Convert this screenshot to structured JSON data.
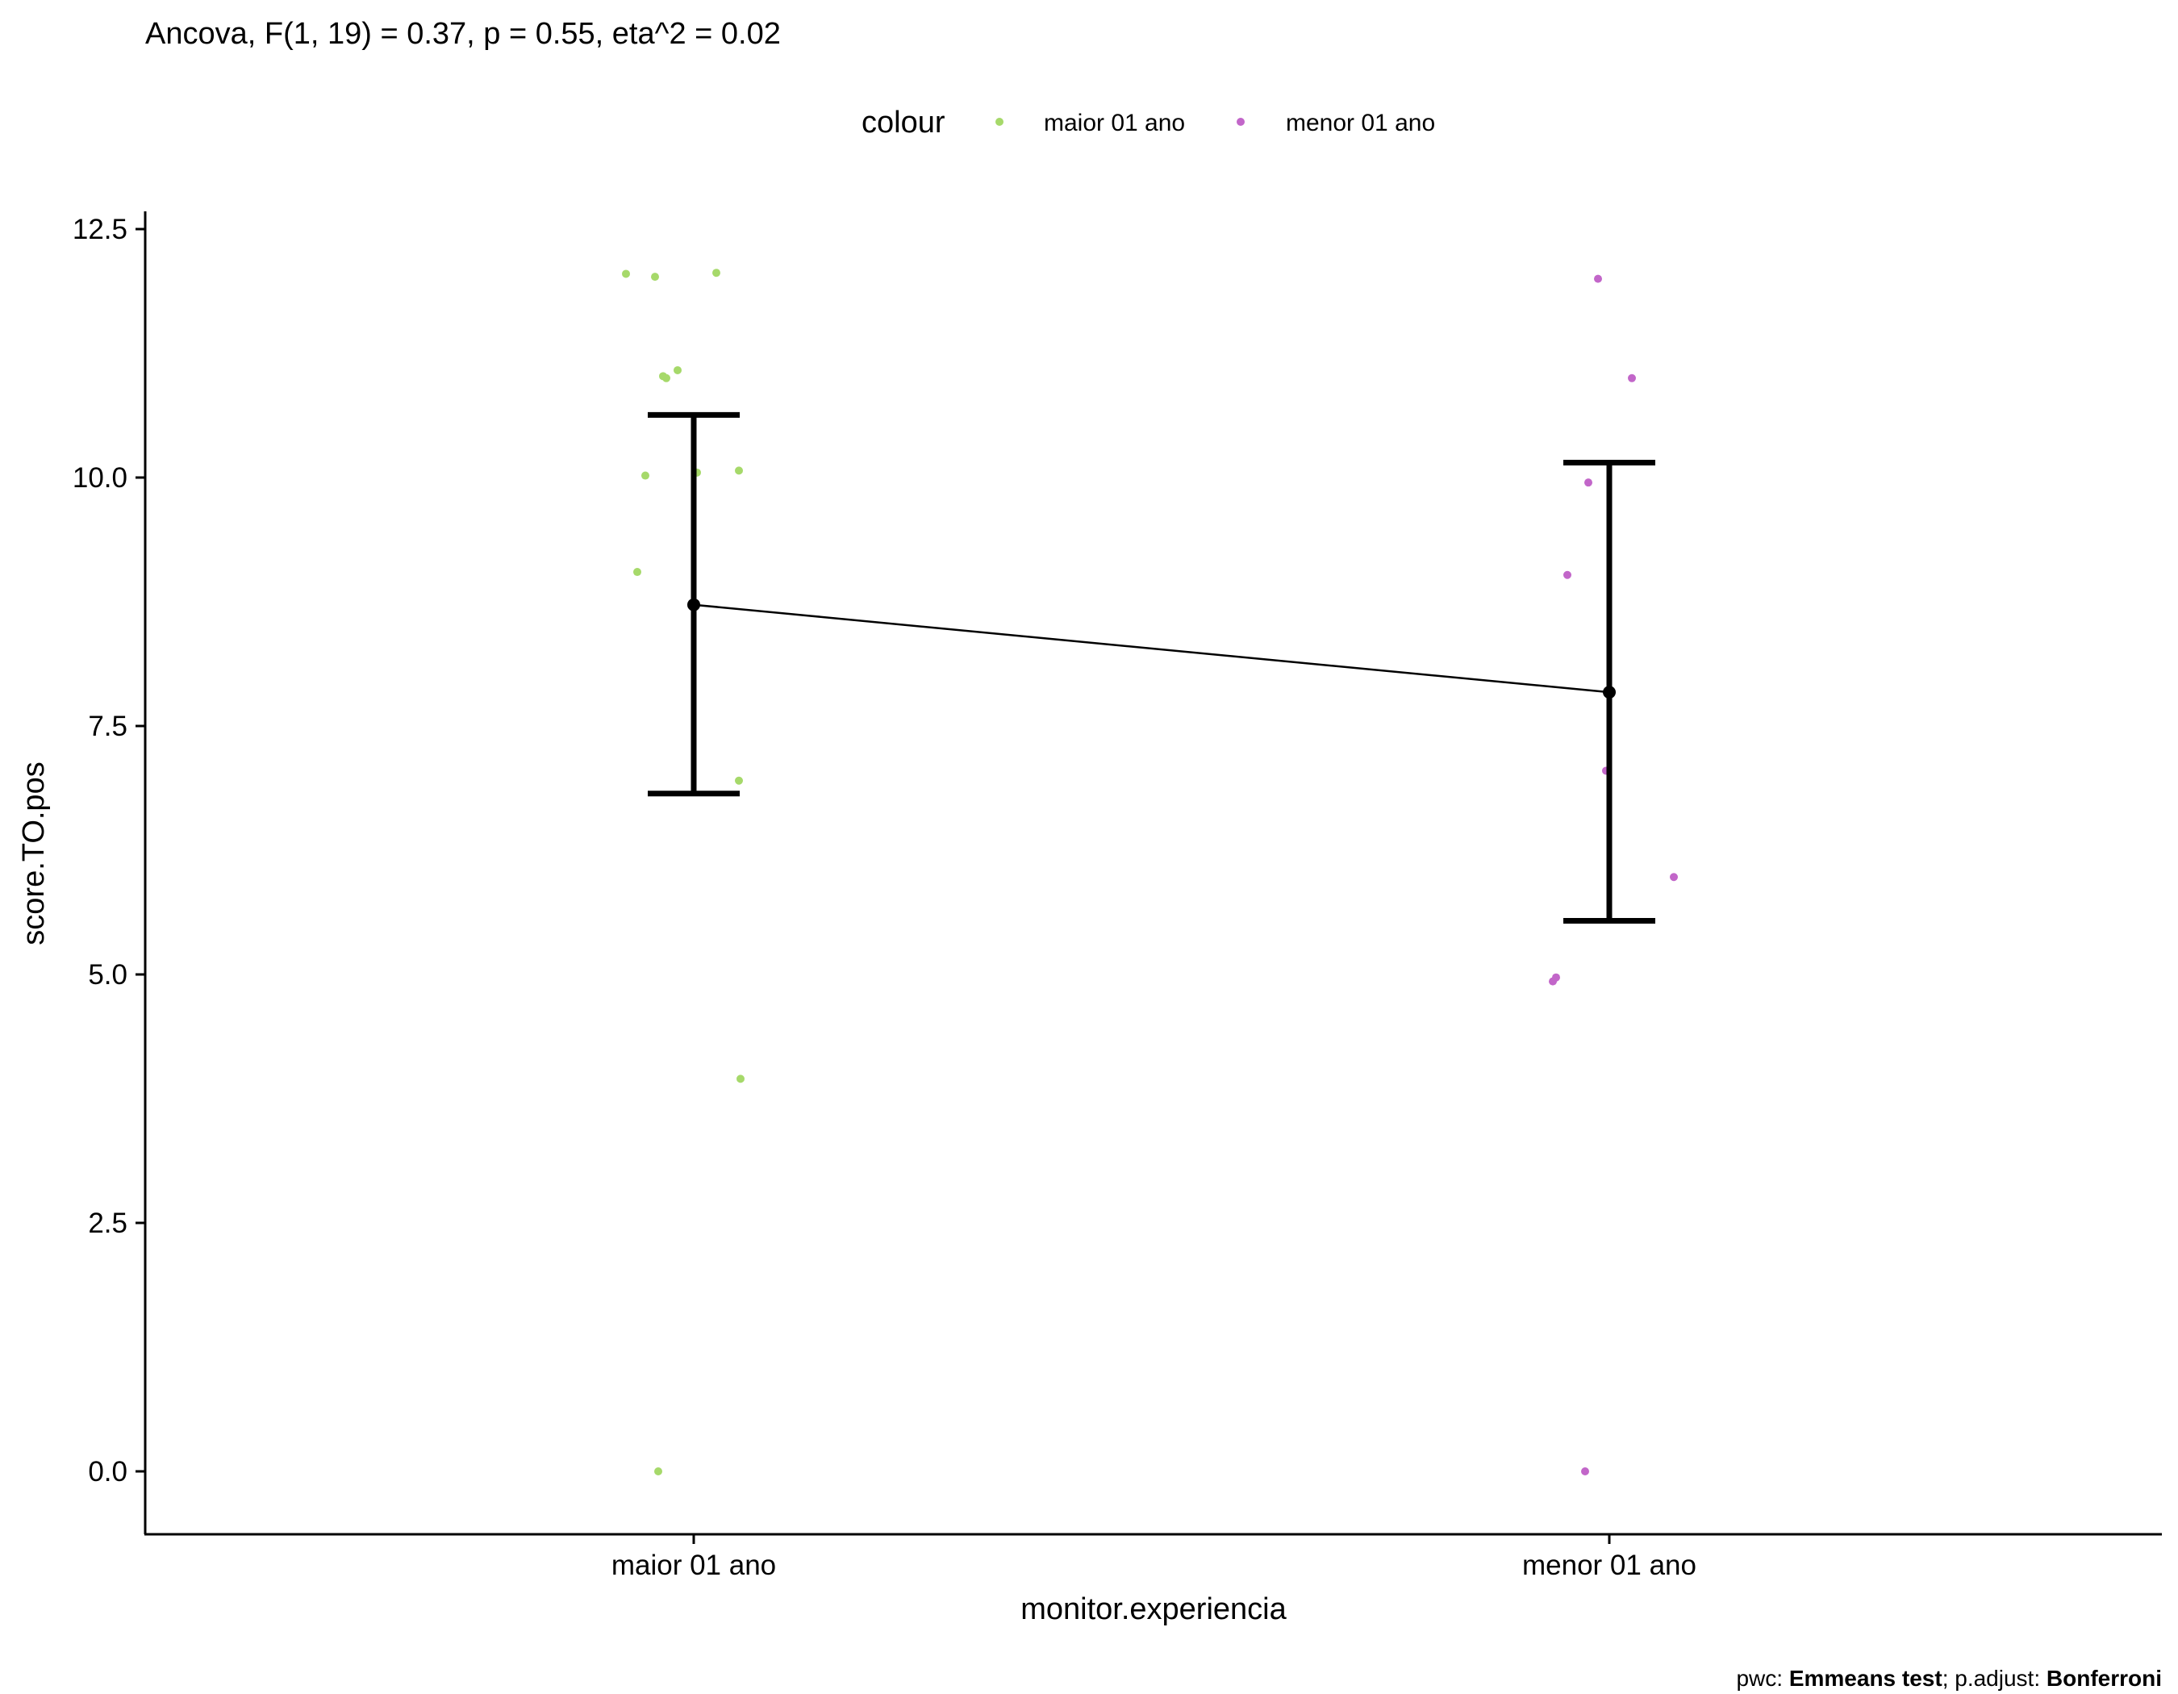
{
  "chart_data": {
    "type": "scatter",
    "title": "Ancova, F(1, 19) = 0.37, p = 0.55, eta^2 = 0.02",
    "xlabel": "monitor.experiencia",
    "ylabel": "score.TO.pos",
    "categories": [
      "maior 01 ano",
      "menor 01 ano"
    ],
    "ylim": [
      -0.6,
      12.6
    ],
    "yticks": [
      0.0,
      2.5,
      5.0,
      7.5,
      10.0,
      12.5
    ],
    "ytick_labels": [
      "0.0",
      "2.5",
      "5.0",
      "7.5",
      "10.0",
      "12.5"
    ],
    "legend": {
      "title": "colour",
      "placement": "top",
      "entries": [
        {
          "label": "maior 01 ano",
          "color": "#a6d96a"
        },
        {
          "label": "menor 01 ano",
          "color": "#c266c9"
        }
      ]
    },
    "points": [
      {
        "group": "maior 01 ano",
        "values": [
          12.05,
          12.02,
          12.06,
          11.08,
          11.02,
          11.0,
          10.05,
          10.02,
          10.07,
          9.05,
          6.95,
          3.95,
          0.0
        ]
      },
      {
        "group": "menor 01 ano",
        "values": [
          12.0,
          11.0,
          9.95,
          9.02,
          7.05,
          5.98,
          4.97,
          4.93,
          0.0
        ]
      }
    ],
    "means": [
      {
        "group": "maior 01 ano",
        "mean": 8.72,
        "lower": 6.82,
        "upper": 10.63
      },
      {
        "group": "menor 01 ano",
        "mean": 7.84,
        "lower": 5.54,
        "upper": 10.15
      }
    ],
    "caption": {
      "prefix1": "pwc: ",
      "bold1": "Emmeans test",
      "prefix2": "; p.adjust: ",
      "bold2": "Bonferroni"
    },
    "grid": false,
    "colors": {
      "group1": "#a6d96a",
      "group2": "#c266c9",
      "summary": "#000000"
    }
  }
}
